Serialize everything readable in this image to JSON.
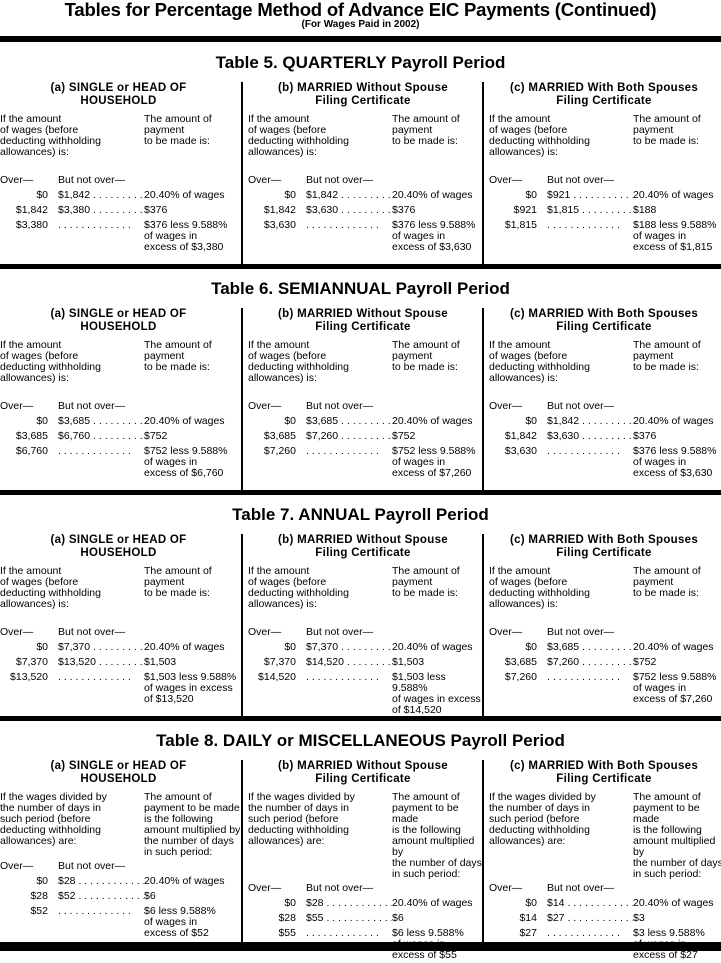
{
  "header": {
    "title": "Tables for Percentage Method of Advance EIC Payments (Continued)",
    "subtitle": "(For Wages Paid in 2002)"
  },
  "tables": [
    {
      "title": "Table 5. QUARTERLY Payroll Period",
      "panels": [
        {
          "heading": "(a) SINGLE or HEAD OF\nHOUSEHOLD",
          "intro_left": "If the amount\nof wages (before\ndeducting withholding\nallowances) is:",
          "intro_right": "The amount of\npayment\nto be made is:",
          "over_label": "Over—",
          "not_over_label": "But not over—",
          "rows": [
            {
              "over": "$0",
              "not_over": "$1,842",
              "payment": "20.40% of wages"
            },
            {
              "over": "$1,842",
              "not_over": "$3,380",
              "payment": "$376"
            },
            {
              "over": "$3,380",
              "not_over": "",
              "payment": "$376 less 9.588%\nof wages in\nexcess of $3,380"
            }
          ]
        },
        {
          "heading": "(b) MARRIED Without Spouse\nFiling Certificate",
          "intro_left": "If the amount\nof wages (before\ndeducting withholding\nallowances) is:",
          "intro_right": "The amount of\npayment\nto be made is:",
          "over_label": "Over—",
          "not_over_label": "But not over—",
          "rows": [
            {
              "over": "$0",
              "not_over": "$1,842",
              "payment": "20.40% of wages"
            },
            {
              "over": "$1,842",
              "not_over": "$3,630",
              "payment": "$376"
            },
            {
              "over": "$3,630",
              "not_over": "",
              "payment": "$376 less 9.588%\nof wages in\nexcess of $3,630"
            }
          ]
        },
        {
          "heading": "(c) MARRIED With Both Spouses\nFiling Certificate",
          "intro_left": "If the amount\nof wages (before\ndeducting withholding\nallowances) is:",
          "intro_right": "The amount of\npayment\nto be made is:",
          "over_label": "Over—",
          "not_over_label": "But not over—",
          "rows": [
            {
              "over": "$0",
              "not_over": "$921",
              "payment": "20.40% of wages"
            },
            {
              "over": "$921",
              "not_over": "$1,815",
              "payment": "$188"
            },
            {
              "over": "$1,815",
              "not_over": "",
              "payment": "$188 less 9.588%\nof wages in\nexcess of $1,815"
            }
          ]
        }
      ]
    },
    {
      "title": "Table 6. SEMIANNUAL Payroll Period",
      "panels": [
        {
          "heading": "(a) SINGLE or HEAD OF\nHOUSEHOLD",
          "intro_left": "If the amount\nof wages (before\ndeducting withholding\nallowances) is:",
          "intro_right": "The amount of\npayment\nto be made is:",
          "over_label": "Over—",
          "not_over_label": "But not over—",
          "rows": [
            {
              "over": "$0",
              "not_over": "$3,685",
              "payment": "20.40% of wages"
            },
            {
              "over": "$3,685",
              "not_over": "$6,760",
              "payment": "$752"
            },
            {
              "over": "$6,760",
              "not_over": "",
              "payment": "$752 less 9.588%\nof wages in\nexcess of $6,760"
            }
          ]
        },
        {
          "heading": "(b) MARRIED Without Spouse\nFiling Certificate",
          "intro_left": "If the amount\nof wages (before\ndeducting withholding\nallowances) is:",
          "intro_right": "The amount of\npayment\nto be made is:",
          "over_label": "Over—",
          "not_over_label": "But not over—",
          "rows": [
            {
              "over": "$0",
              "not_over": "$3,685",
              "payment": "20.40% of wages"
            },
            {
              "over": "$3,685",
              "not_over": "$7,260",
              "payment": "$752"
            },
            {
              "over": "$7,260",
              "not_over": "",
              "payment": "$752 less 9.588%\nof wages in\nexcess of $7,260"
            }
          ]
        },
        {
          "heading": "(c) MARRIED With Both Spouses\nFiling Certificate",
          "intro_left": "If the amount\nof wages (before\ndeducting withholding\nallowances) is:",
          "intro_right": "The amount of\npayment\nto be made is:",
          "over_label": "Over—",
          "not_over_label": "But not over—",
          "rows": [
            {
              "over": "$0",
              "not_over": "$1,842",
              "payment": "20.40% of wages"
            },
            {
              "over": "$1,842",
              "not_over": "$3,630",
              "payment": "$376"
            },
            {
              "over": "$3,630",
              "not_over": "",
              "payment": "$376 less 9.588%\nof wages in\nexcess of $3,630"
            }
          ]
        }
      ]
    },
    {
      "title": "Table 7. ANNUAL Payroll Period",
      "panels": [
        {
          "heading": "(a) SINGLE or HEAD OF\nHOUSEHOLD",
          "intro_left": "If the amount\nof wages (before\ndeducting withholding\nallowances) is:",
          "intro_right": "The amount of\npayment\nto be made is:",
          "over_label": "Over—",
          "not_over_label": "But not over—",
          "rows": [
            {
              "over": "$0",
              "not_over": "$7,370",
              "payment": "20.40% of wages"
            },
            {
              "over": "$7,370",
              "not_over": "$13,520",
              "payment": "$1,503"
            },
            {
              "over": "$13,520",
              "not_over": "",
              "payment": "$1,503 less 9.588%\nof wages in excess\nof $13,520"
            }
          ]
        },
        {
          "heading": "(b) MARRIED Without Spouse\nFiling Certificate",
          "intro_left": "If the amount\nof wages (before\ndeducting withholding\nallowances) is:",
          "intro_right": "The amount of\npayment\nto be made is:",
          "over_label": "Over—",
          "not_over_label": "But not over—",
          "rows": [
            {
              "over": "$0",
              "not_over": "$7,370",
              "payment": "20.40% of wages"
            },
            {
              "over": "$7,370",
              "not_over": "$14,520",
              "payment": "$1,503"
            },
            {
              "over": "$14,520",
              "not_over": "",
              "payment": "$1,503 less 9.588%\nof wages in excess\nof $14,520"
            }
          ]
        },
        {
          "heading": "(c) MARRIED With Both Spouses\nFiling Certificate",
          "intro_left": "If the amount\nof wages (before\ndeducting withholding\nallowances) is:",
          "intro_right": "The amount of\npayment\nto be made is:",
          "over_label": "Over—",
          "not_over_label": "But not over—",
          "rows": [
            {
              "over": "$0",
              "not_over": "$3,685",
              "payment": "20.40% of wages"
            },
            {
              "over": "$3,685",
              "not_over": "$7,260",
              "payment": "$752"
            },
            {
              "over": "$7,260",
              "not_over": "",
              "payment": "$752 less 9.588%\nof wages in\nexcess of $7,260"
            }
          ]
        }
      ]
    },
    {
      "title": "Table 8. DAILY or MISCELLANEOUS Payroll Period",
      "panels": [
        {
          "heading": "(a) SINGLE or HEAD OF\nHOUSEHOLD",
          "intro_left": "If the wages divided by\nthe number of days in\nsuch period (before\ndeducting withholding\nallowances) are:",
          "intro_right": "The amount of\npayment to be made\nis the following\namount multiplied by\nthe number of days\nin such period:",
          "over_label": "Over—",
          "not_over_label": "But not over—",
          "rows": [
            {
              "over": "$0",
              "not_over": "$28",
              "payment": "20.40% of wages"
            },
            {
              "over": "$28",
              "not_over": "$52",
              "payment": "$6"
            },
            {
              "over": "$52",
              "not_over": "",
              "payment": "$6 less 9.588%\nof wages in\nexcess of $52"
            }
          ]
        },
        {
          "heading": "(b) MARRIED Without Spouse\nFiling Certificate",
          "intro_left": "If the wages divided by\nthe number of days in\nsuch period (before\ndeducting withholding\nallowances) are:",
          "intro_right": "The amount of\npayment to be made\nis the following\namount multiplied by\nthe number of days\nin such period:",
          "over_label": "Over—",
          "not_over_label": "But not over—",
          "rows": [
            {
              "over": "$0",
              "not_over": "$28",
              "payment": "20.40% of wages"
            },
            {
              "over": "$28",
              "not_over": "$55",
              "payment": "$6"
            },
            {
              "over": "$55",
              "not_over": "",
              "payment": "$6 less 9.588%\nof wages in\nexcess of $55"
            }
          ]
        },
        {
          "heading": "(c) MARRIED With Both Spouses\nFiling Certificate",
          "intro_left": "If the wages divided by\nthe number of days in\nsuch period (before\ndeducting withholding\nallowances) are:",
          "intro_right": "The amount of\npayment to be made\nis the following\namount multiplied by\nthe number of days\nin such period:",
          "over_label": "Over—",
          "not_over_label": "But not over—",
          "rows": [
            {
              "over": "$0",
              "not_over": "$14",
              "payment": "20.40% of wages"
            },
            {
              "over": "$14",
              "not_over": "$27",
              "payment": "$3"
            },
            {
              "over": "$27",
              "not_over": "",
              "payment": "$3 less 9.588%\nof wages in\nexcess of $27"
            }
          ]
        }
      ]
    }
  ]
}
